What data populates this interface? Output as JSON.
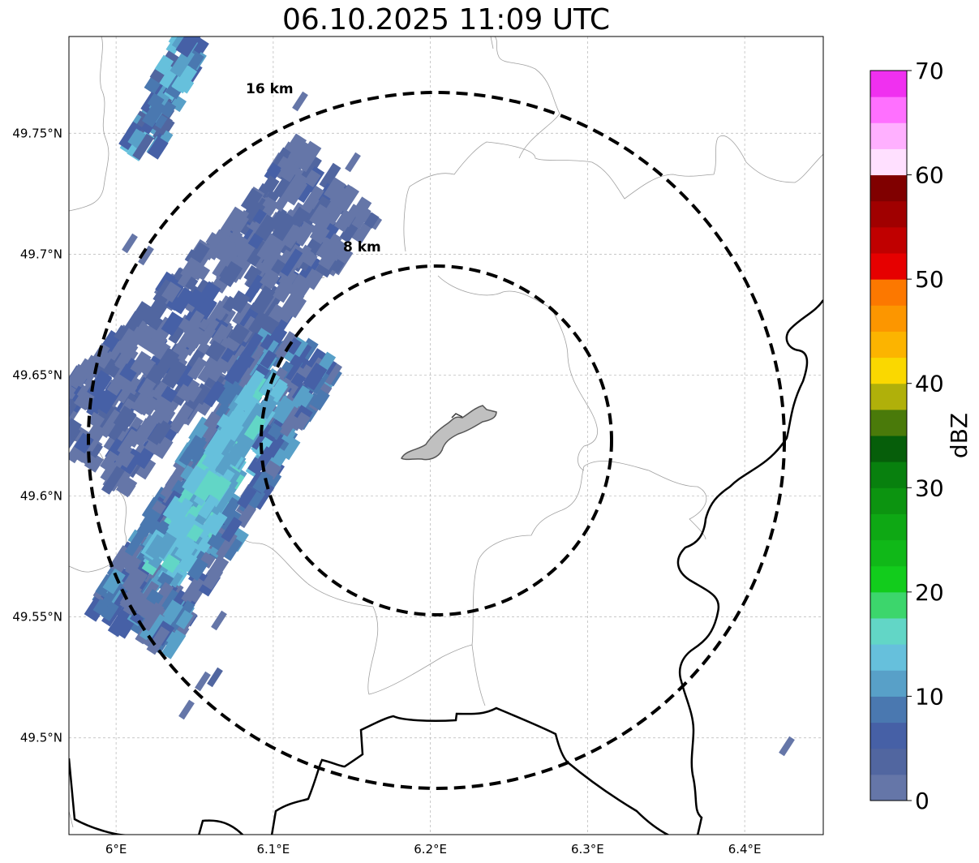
{
  "title": "06.10.2025 11:09 UTC",
  "map": {
    "lon_range": [
      5.97,
      6.45
    ],
    "lat_range": [
      49.46,
      49.79
    ],
    "lon_ticks": [
      6.0,
      6.1,
      6.2,
      6.3,
      6.4
    ],
    "lon_tick_labels": [
      "6°E",
      "6.1°E",
      "6.2°E",
      "6.3°E",
      "6.4°E"
    ],
    "lat_ticks": [
      49.5,
      49.55,
      49.6,
      49.65,
      49.7,
      49.75
    ],
    "lat_tick_labels": [
      "49.5°N",
      "49.55°N",
      "49.6°N",
      "49.65°N",
      "49.7°N",
      "49.75°N"
    ],
    "grid": true,
    "center": {
      "lon": 6.2,
      "lat": 49.623
    },
    "rings": [
      {
        "label": "8 km",
        "radius_km": 8
      },
      {
        "label": "16 km",
        "radius_km": 16
      }
    ],
    "site_fill": "#c0c0c0"
  },
  "colorbar": {
    "label": "dBZ",
    "min": 0,
    "max": 70,
    "tick_values": [
      0,
      10,
      20,
      30,
      40,
      50,
      60,
      70
    ],
    "tick_labels": [
      "0",
      "10",
      "20",
      "30",
      "40",
      "50",
      "60",
      "70"
    ],
    "colors": [
      "#6576a8",
      "#5166a0",
      "#4660a6",
      "#4a78b0",
      "#58a0c8",
      "#66c0dc",
      "#62d6c6",
      "#3cd66c",
      "#12cc1c",
      "#10b818",
      "#0ea814",
      "#0c9410",
      "#08800e",
      "#065e0a",
      "#4a7a0a",
      "#b0b00a",
      "#fad800",
      "#fcb400",
      "#fc9600",
      "#fc7800",
      "#e60000",
      "#c00000",
      "#a00000",
      "#800000",
      "#ffe0ff",
      "#ffb0ff",
      "#ff70ff",
      "#f030f0"
    ]
  }
}
